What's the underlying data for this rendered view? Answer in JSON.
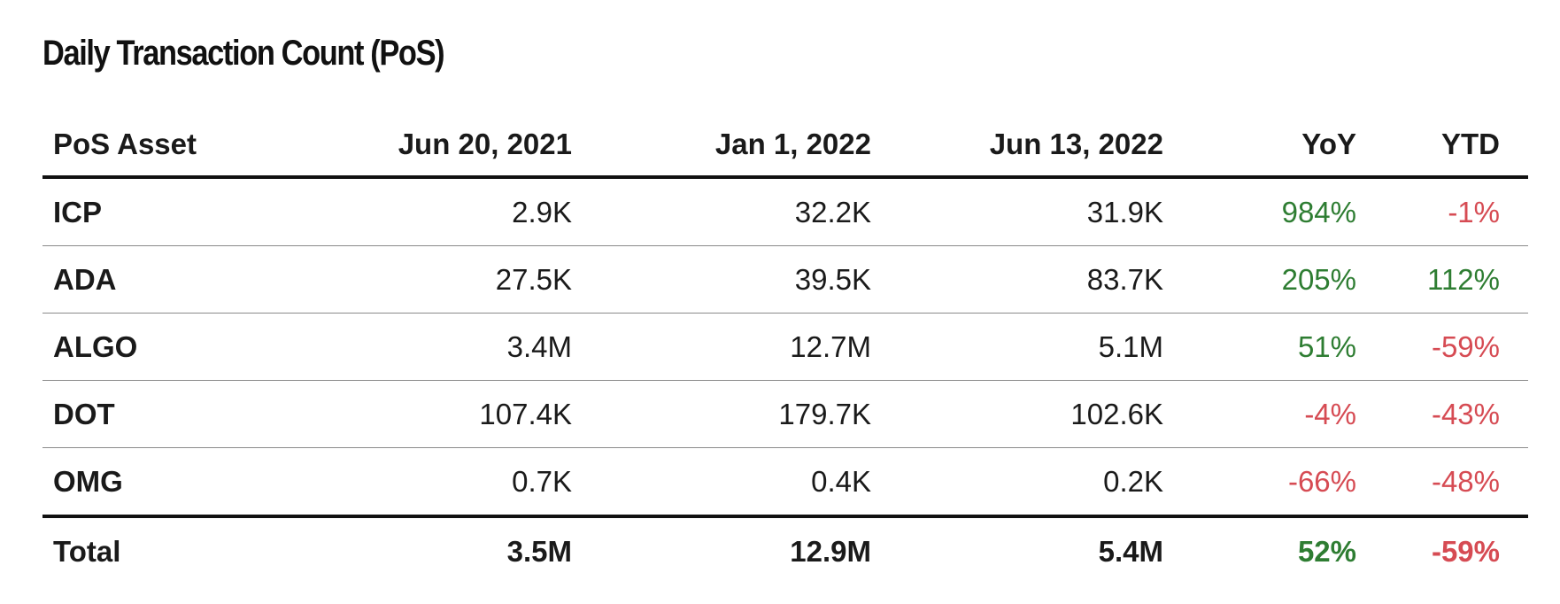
{
  "title": "Daily Transaction Count (PoS)",
  "colors": {
    "positive": "#2e7d32",
    "negative": "#d64b53",
    "text": "#1a1a1a",
    "rule": "#111111"
  },
  "chart_data": {
    "type": "table",
    "title": "Daily Transaction Count (PoS)",
    "columns": [
      "PoS Asset",
      "Jun 20, 2021",
      "Jan 1, 2022",
      "Jun 13, 2022",
      "YoY",
      "YTD"
    ],
    "rows": [
      [
        "ICP",
        "2.9K",
        "32.2K",
        "31.9K",
        "984%",
        "-1%"
      ],
      [
        "ADA",
        "27.5K",
        "39.5K",
        "83.7K",
        "205%",
        "112%"
      ],
      [
        "ALGO",
        "3.4M",
        "12.7M",
        "5.1M",
        "51%",
        "-59%"
      ],
      [
        "DOT",
        "107.4K",
        "179.7K",
        "102.6K",
        "-4%",
        "-43%"
      ],
      [
        "OMG",
        "0.7K",
        "0.4K",
        "0.2K",
        "-66%",
        "-48%"
      ]
    ],
    "total": [
      "Total",
      "3.5M",
      "12.9M",
      "5.4M",
      "52%",
      "-59%"
    ]
  }
}
